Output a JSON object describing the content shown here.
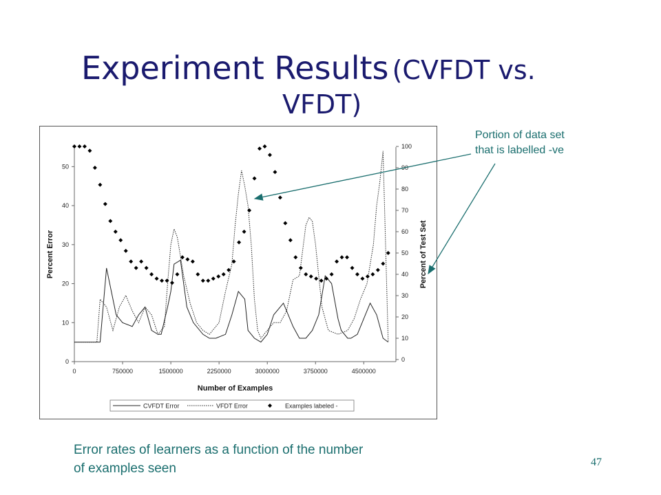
{
  "slide": {
    "title_main": "Experiment Results",
    "title_paren_1": "(CVFDT vs.",
    "title_paren_2": "VFDT)",
    "annotation_line1": "Portion of data set",
    "annotation_line2": "that is labelled -ve",
    "caption_line1": "Error rates of learners as a function of the number",
    "caption_line2": "of examples seen",
    "page_number": "47",
    "title_color": "#1a1a6e",
    "accent_color": "#1a6e6e"
  },
  "chart_data": {
    "type": "line",
    "xlabel": "Number of Examples",
    "ylabel": "Percent Error",
    "y2label": "Percent of Test Set",
    "xlim": [
      0,
      5000000
    ],
    "ylim": [
      0,
      55
    ],
    "y2lim": [
      0,
      100
    ],
    "x_ticks": [
      "0",
      "750000",
      "1500000",
      "2250000",
      "3000000",
      "3750000",
      "4500000"
    ],
    "x_tick_values": [
      0,
      750000,
      1500000,
      2250000,
      3000000,
      3750000,
      4500000
    ],
    "y_ticks": [
      "0",
      "10",
      "20",
      "30",
      "40",
      "50"
    ],
    "y_tick_values": [
      0,
      10,
      20,
      30,
      40,
      50
    ],
    "y2_ticks": [
      "0",
      "10",
      "20",
      "30",
      "40",
      "50",
      "60",
      "70",
      "80",
      "90",
      "100"
    ],
    "y2_tick_values": [
      0,
      10,
      20,
      30,
      40,
      50,
      60,
      70,
      80,
      90,
      100
    ],
    "legend_position": "bottom",
    "series": [
      {
        "name": "CVFDT Error",
        "style": "solid",
        "axis": "left",
        "x": [
          0,
          400000,
          500000,
          650000,
          750000,
          900000,
          1000000,
          1100000,
          1200000,
          1300000,
          1350000,
          1450000,
          1500000,
          1550000,
          1650000,
          1750000,
          1850000,
          2000000,
          2100000,
          2200000,
          2350000,
          2450000,
          2550000,
          2650000,
          2700000,
          2800000,
          2900000,
          3000000,
          3100000,
          3250000,
          3400000,
          3500000,
          3600000,
          3700000,
          3800000,
          3900000,
          4000000,
          4100000,
          4150000,
          4250000,
          4300000,
          4400000,
          4500000,
          4600000,
          4700000,
          4800000,
          4880000
        ],
        "values": [
          5,
          5,
          24,
          12,
          10,
          9,
          12,
          14,
          8,
          7,
          7,
          14,
          18,
          25,
          26,
          14,
          10,
          7,
          6,
          6,
          7,
          12,
          18,
          16,
          8,
          6,
          5,
          7,
          12,
          15,
          9,
          6,
          6,
          8,
          12,
          22,
          20,
          11,
          8,
          6,
          6,
          7,
          11,
          15,
          12,
          6,
          5
        ]
      },
      {
        "name": "VFDT Error",
        "style": "dotted",
        "axis": "left",
        "x": [
          0,
          350000,
          400000,
          500000,
          600000,
          700000,
          800000,
          900000,
          1000000,
          1100000,
          1200000,
          1300000,
          1400000,
          1450000,
          1500000,
          1550000,
          1600000,
          1700000,
          1800000,
          1900000,
          2000000,
          2100000,
          2250000,
          2350000,
          2450000,
          2500000,
          2550000,
          2600000,
          2650000,
          2700000,
          2750000,
          2800000,
          2850000,
          2900000,
          2950000,
          3000000,
          3100000,
          3200000,
          3300000,
          3400000,
          3500000,
          3600000,
          3650000,
          3700000,
          3750000,
          3800000,
          3850000,
          3950000,
          4100000,
          4250000,
          4350000,
          4450000,
          4550000,
          4650000,
          4700000,
          4750000,
          4800000,
          4880000
        ],
        "values": [
          5,
          5,
          16,
          14,
          8,
          14,
          17,
          13,
          10,
          14,
          12,
          7,
          9,
          20,
          30,
          34,
          32,
          22,
          15,
          10,
          8,
          7,
          10,
          18,
          25,
          35,
          43,
          49,
          45,
          40,
          30,
          16,
          8,
          6,
          7,
          8,
          10,
          10,
          13,
          21,
          22,
          35,
          37,
          36,
          30,
          22,
          14,
          8,
          7,
          8,
          11,
          16,
          20,
          30,
          40,
          46,
          54,
          5
        ]
      },
      {
        "name": "Examples labeled -",
        "style": "markers",
        "axis": "right",
        "x": [
          0,
          80000,
          160000,
          240000,
          320000,
          400000,
          480000,
          560000,
          640000,
          720000,
          800000,
          880000,
          960000,
          1040000,
          1120000,
          1200000,
          1280000,
          1360000,
          1440000,
          1520000,
          1600000,
          1680000,
          1760000,
          1840000,
          1920000,
          2000000,
          2080000,
          2160000,
          2240000,
          2320000,
          2400000,
          2480000,
          2560000,
          2640000,
          2720000,
          2800000,
          2880000,
          2960000,
          3040000,
          3120000,
          3200000,
          3280000,
          3360000,
          3440000,
          3520000,
          3600000,
          3680000,
          3760000,
          3840000,
          3920000,
          4000000,
          4080000,
          4160000,
          4240000,
          4320000,
          4400000,
          4480000,
          4560000,
          4640000,
          4720000,
          4800000,
          4880000
        ],
        "values": [
          100,
          100,
          100,
          98,
          90,
          82,
          73,
          65,
          60,
          56,
          51,
          46,
          43,
          46,
          43,
          40,
          38,
          37,
          37,
          36,
          40,
          48,
          47,
          46,
          40,
          37,
          37,
          38,
          39,
          40,
          42,
          46,
          55,
          60,
          70,
          85,
          99,
          100,
          96,
          88,
          76,
          64,
          56,
          48,
          43,
          40,
          39,
          38,
          37,
          38,
          40,
          46,
          48,
          48,
          43,
          40,
          38,
          39,
          40,
          42,
          45,
          50
        ]
      }
    ]
  }
}
